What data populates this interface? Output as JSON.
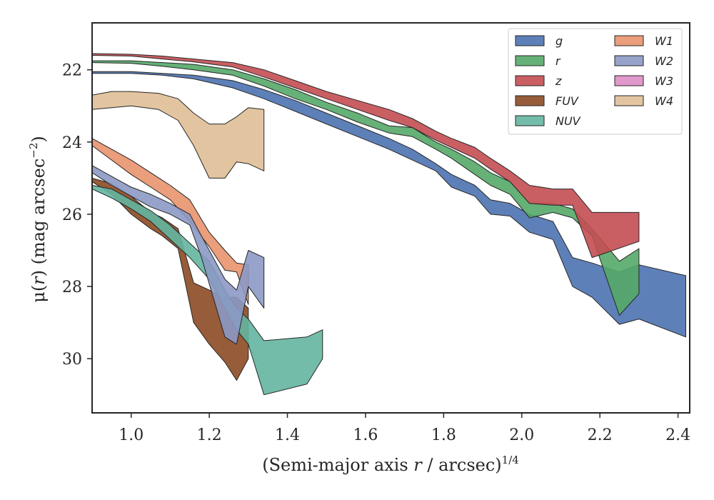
{
  "chart_data": {
    "type": "area",
    "xlabel_parts": [
      "(Semi-major axis ",
      "r",
      " / arcsec)",
      "1/4"
    ],
    "ylabel_parts": [
      "μ(",
      "r",
      ") (mag arcsec",
      "−2",
      ")"
    ],
    "xlim": [
      0.9,
      2.43
    ],
    "ylim": [
      31.5,
      20.7
    ],
    "y_inverted": true,
    "x_ticks": [
      1.0,
      1.2,
      1.4,
      1.6,
      1.8,
      2.0,
      2.2,
      2.4
    ],
    "x_tick_labels": [
      "1.0",
      "1.2",
      "1.4",
      "1.6",
      "1.8",
      "2.0",
      "2.2",
      "2.4"
    ],
    "y_ticks": [
      22,
      24,
      26,
      28,
      30
    ],
    "y_tick_labels": [
      "22",
      "24",
      "26",
      "28",
      "30"
    ],
    "grid": false,
    "legend_placement": "top-right",
    "legend_columns": 2,
    "series": [
      {
        "name": "g",
        "color": "#4c72b0",
        "x": [
          0.9,
          1.0,
          1.08,
          1.16,
          1.26,
          1.34,
          1.42,
          1.5,
          1.58,
          1.66,
          1.72,
          1.78,
          1.82,
          1.88,
          1.92,
          1.97,
          2.02,
          2.08,
          2.13,
          2.18,
          2.25,
          2.3,
          2.42
        ],
        "lower": [
          22.05,
          22.05,
          22.1,
          22.15,
          22.3,
          22.55,
          22.85,
          23.2,
          23.55,
          23.9,
          24.2,
          24.6,
          24.9,
          25.2,
          25.6,
          25.7,
          26.0,
          26.2,
          27.2,
          27.35,
          27.6,
          27.4,
          27.7
        ],
        "upper": [
          22.1,
          22.1,
          22.15,
          22.25,
          22.5,
          22.8,
          23.15,
          23.5,
          23.85,
          24.2,
          24.5,
          24.8,
          25.25,
          25.5,
          26.0,
          26.05,
          26.5,
          26.7,
          28.0,
          28.3,
          29.05,
          28.9,
          29.4
        ]
      },
      {
        "name": "r",
        "color": "#55a868",
        "x": [
          0.9,
          1.0,
          1.08,
          1.16,
          1.26,
          1.34,
          1.42,
          1.5,
          1.58,
          1.66,
          1.72,
          1.78,
          1.82,
          1.88,
          1.92,
          1.97,
          2.02,
          2.08,
          2.13,
          2.18,
          2.25,
          2.3
        ],
        "lower": [
          21.75,
          21.75,
          21.8,
          21.85,
          22.0,
          22.25,
          22.55,
          22.9,
          23.2,
          23.55,
          23.6,
          24.0,
          24.2,
          24.55,
          24.85,
          25.1,
          25.7,
          25.7,
          25.85,
          26.4,
          27.3,
          26.95
        ],
        "upper": [
          21.8,
          21.82,
          21.9,
          22.0,
          22.15,
          22.45,
          22.8,
          23.1,
          23.45,
          23.75,
          23.85,
          24.2,
          24.45,
          24.9,
          25.2,
          25.45,
          26.1,
          25.95,
          26.1,
          26.6,
          28.8,
          28.2
        ]
      },
      {
        "name": "z",
        "color": "#c44e52",
        "x": [
          0.9,
          1.0,
          1.08,
          1.16,
          1.26,
          1.34,
          1.42,
          1.5,
          1.58,
          1.66,
          1.72,
          1.78,
          1.82,
          1.88,
          1.92,
          1.97,
          2.02,
          2.08,
          2.13,
          2.18,
          2.3
        ],
        "lower": [
          21.55,
          21.57,
          21.62,
          21.7,
          21.8,
          22.0,
          22.3,
          22.6,
          22.85,
          23.1,
          23.35,
          23.7,
          23.9,
          24.15,
          24.45,
          24.8,
          25.2,
          25.3,
          25.3,
          25.95,
          25.95
        ],
        "upper": [
          21.6,
          21.62,
          21.7,
          21.78,
          21.92,
          22.2,
          22.5,
          22.8,
          23.1,
          23.4,
          23.6,
          23.95,
          24.15,
          24.45,
          24.75,
          25.1,
          25.7,
          25.75,
          25.75,
          27.2,
          26.75
        ]
      },
      {
        "name": "FUV",
        "color": "#8c4a23",
        "x": [
          0.9,
          0.95,
          1.0,
          1.05,
          1.08,
          1.12,
          1.16,
          1.2,
          1.24,
          1.27,
          1.3
        ],
        "lower": [
          25.0,
          25.15,
          25.5,
          25.95,
          26.1,
          26.4,
          27.9,
          28.1,
          28.3,
          28.3,
          28.6
        ],
        "upper": [
          25.1,
          25.45,
          26.0,
          26.4,
          26.6,
          26.95,
          29.0,
          29.6,
          30.1,
          30.6,
          30.0
        ]
      },
      {
        "name": "NUV",
        "color": "#64b5a0",
        "x": [
          0.9,
          0.95,
          1.0,
          1.05,
          1.1,
          1.15,
          1.2,
          1.24,
          1.27,
          1.3,
          1.34,
          1.45,
          1.49
        ],
        "lower": [
          25.2,
          25.3,
          25.6,
          25.9,
          26.3,
          26.8,
          27.3,
          28.1,
          28.6,
          28.9,
          29.5,
          29.4,
          29.2
        ],
        "upper": [
          25.3,
          25.55,
          25.85,
          26.2,
          26.7,
          27.2,
          27.8,
          28.6,
          29.2,
          29.6,
          31.0,
          30.7,
          30.0
        ]
      },
      {
        "name": "W1",
        "color": "#e8936e",
        "x": [
          0.9,
          0.95,
          1.0,
          1.05,
          1.1,
          1.15,
          1.2,
          1.24,
          1.27,
          1.3
        ],
        "lower": [
          23.9,
          24.2,
          24.5,
          24.85,
          25.2,
          25.6,
          26.5,
          27.0,
          27.35,
          27.4
        ],
        "upper": [
          24.1,
          24.5,
          24.9,
          25.25,
          25.6,
          26.2,
          26.9,
          27.55,
          27.6,
          28.5
        ]
      },
      {
        "name": "W2",
        "color": "#8c99c4",
        "x": [
          0.9,
          0.95,
          1.0,
          1.05,
          1.1,
          1.15,
          1.18,
          1.24,
          1.27,
          1.3,
          1.34
        ],
        "lower": [
          24.65,
          24.95,
          25.25,
          25.45,
          25.7,
          26.0,
          26.6,
          27.8,
          28.1,
          27.0,
          27.2
        ],
        "upper": [
          24.85,
          25.2,
          25.5,
          25.8,
          26.0,
          26.3,
          27.2,
          29.4,
          29.6,
          28.0,
          28.6
        ]
      },
      {
        "name": "W3",
        "color": "#dd8ec5",
        "x": [],
        "lower": [],
        "upper": []
      },
      {
        "name": "W4",
        "color": "#dfbf96",
        "x": [
          0.9,
          0.95,
          1.0,
          1.07,
          1.12,
          1.16,
          1.2,
          1.24,
          1.27,
          1.3,
          1.34
        ],
        "lower": [
          22.7,
          22.6,
          22.6,
          22.65,
          22.8,
          23.2,
          23.5,
          23.5,
          23.3,
          23.05,
          23.1
        ],
        "upper": [
          23.1,
          23.05,
          23.0,
          23.1,
          23.4,
          24.1,
          25.0,
          25.0,
          24.55,
          24.6,
          24.8
        ]
      }
    ]
  }
}
